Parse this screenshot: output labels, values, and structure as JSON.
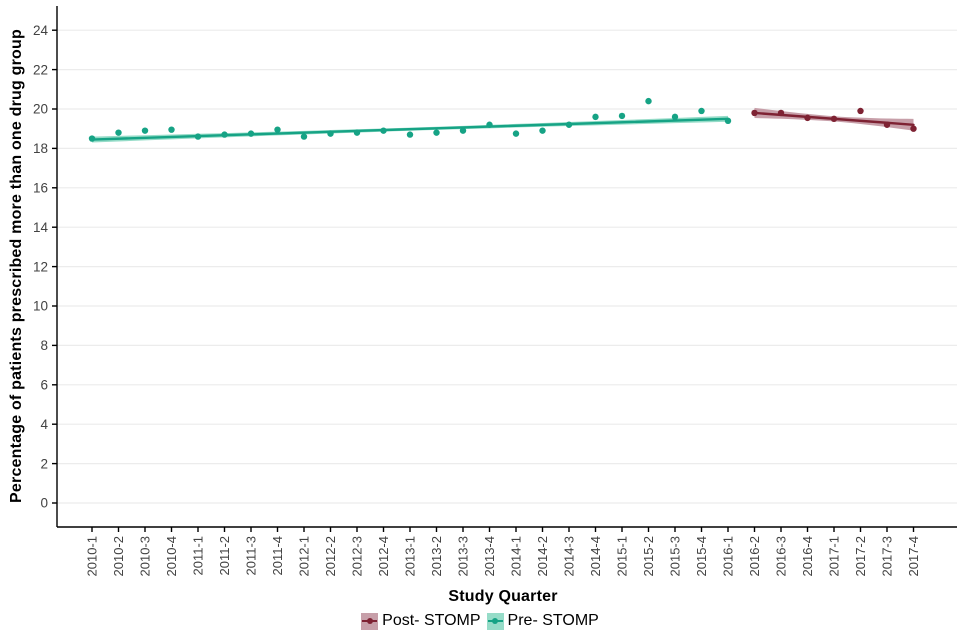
{
  "chart_data": {
    "type": "scatter",
    "title": "",
    "xlabel": "Study Quarter",
    "ylabel": "Percentage of patients prescribed more than one drug group",
    "x_categories": [
      "2010-1",
      "2010-2",
      "2010-3",
      "2010-4",
      "2011-1",
      "2011-2",
      "2011-3",
      "2011-4",
      "2012-1",
      "2012-2",
      "2012-3",
      "2012-4",
      "2013-1",
      "2013-2",
      "2013-3",
      "2013-4",
      "2014-1",
      "2014-2",
      "2014-3",
      "2014-4",
      "2015-1",
      "2015-2",
      "2015-3",
      "2015-4",
      "2016-1",
      "2016-2",
      "2016-3",
      "2016-4",
      "2017-1",
      "2017-2",
      "2017-3",
      "2017-4"
    ],
    "ylim": [
      0,
      24
    ],
    "yticks": [
      0,
      2,
      4,
      6,
      8,
      10,
      12,
      14,
      16,
      18,
      20,
      22,
      24
    ],
    "grid": "horizontal-major-only",
    "legend_position": "bottom",
    "series": [
      {
        "name": "Post- STOMP",
        "color": "#7E2233",
        "ribbon_color": "#C79FA9",
        "start_index": 25,
        "x": [
          "2016-2",
          "2016-3",
          "2016-4",
          "2017-1",
          "2017-2",
          "2017-3",
          "2017-4"
        ],
        "values": [
          19.8,
          19.8,
          19.55,
          19.5,
          19.9,
          19.2,
          19.0
        ],
        "trend": {
          "start": 19.8,
          "end": 19.2
        },
        "band_halfwidth": {
          "start": 0.26,
          "mid": 0.13,
          "end": 0.3
        }
      },
      {
        "name": "Pre- STOMP",
        "color": "#16A385",
        "ribbon_color": "#96DCC8",
        "start_index": 0,
        "x": [
          "2010-1",
          "2010-2",
          "2010-3",
          "2010-4",
          "2011-1",
          "2011-2",
          "2011-3",
          "2011-4",
          "2012-1",
          "2012-2",
          "2012-3",
          "2012-4",
          "2013-1",
          "2013-2",
          "2013-3",
          "2013-4",
          "2014-1",
          "2014-2",
          "2014-3",
          "2014-4",
          "2015-1",
          "2015-2",
          "2015-3",
          "2015-4",
          "2016-1"
        ],
        "values": [
          18.5,
          18.8,
          18.9,
          18.95,
          18.6,
          18.7,
          18.75,
          18.95,
          18.6,
          18.75,
          18.8,
          18.9,
          18.7,
          18.8,
          18.9,
          19.2,
          18.75,
          18.9,
          19.2,
          19.6,
          19.65,
          20.4,
          19.6,
          19.9,
          19.4
        ],
        "trend": {
          "start": 18.45,
          "end": 19.5
        },
        "band_halfwidth": {
          "start": 0.15,
          "mid": 0.08,
          "end": 0.15
        }
      }
    ],
    "legend": [
      {
        "label": "Post- STOMP"
      },
      {
        "label": "Pre- STOMP"
      }
    ]
  },
  "colors": {
    "axis_line": "#000000",
    "tick_label": "#424242",
    "gridline": "#ECECEC",
    "background": "#FFFFFF"
  }
}
